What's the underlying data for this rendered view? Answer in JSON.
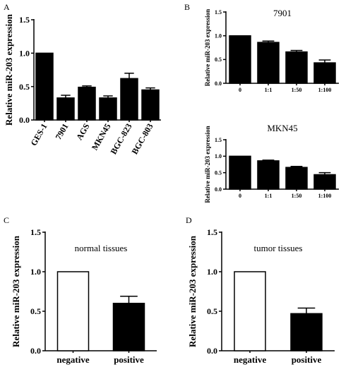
{
  "chart_data": [
    {
      "panel": "A",
      "type": "bar",
      "title": "",
      "xlabel": "",
      "ylabel": "Relative miR-203 expression",
      "categories": [
        "GES-1",
        "7901",
        "AGS",
        "MKN45",
        "BGC-823",
        "BGC-803"
      ],
      "values": [
        1.0,
        0.33,
        0.49,
        0.33,
        0.62,
        0.45
      ],
      "errors": [
        0,
        0.04,
        0.02,
        0.03,
        0.08,
        0.03
      ],
      "fills": [
        "#000000",
        "#000000",
        "#000000",
        "#000000",
        "#000000",
        "#000000"
      ],
      "ylim": [
        0,
        1.5
      ],
      "yticks": [
        "0.0",
        "0.5",
        "1.0",
        "1.5"
      ]
    },
    {
      "panel": "B",
      "type": "bar",
      "title": "7901",
      "xlabel": "",
      "ylabel": "Relative miR-203 expression",
      "categories": [
        "0",
        "1:1",
        "1:50",
        "1:100"
      ],
      "values": [
        1.0,
        0.86,
        0.66,
        0.43
      ],
      "errors": [
        0,
        0.03,
        0.03,
        0.06
      ],
      "fills": [
        "#000000",
        "#000000",
        "#000000",
        "#000000"
      ],
      "ylim": [
        0,
        1.5
      ],
      "yticks": [
        "0.0",
        "0.5",
        "1.0",
        "1.5"
      ]
    },
    {
      "panel": "",
      "type": "bar",
      "title": "MKN45",
      "xlabel": "",
      "ylabel": "Relative miR-203 expression",
      "categories": [
        "0",
        "1:1",
        "1:50",
        "1:100"
      ],
      "values": [
        1.0,
        0.86,
        0.66,
        0.44
      ],
      "errors": [
        0,
        0.02,
        0.03,
        0.06
      ],
      "fills": [
        "#000000",
        "#000000",
        "#000000",
        "#000000"
      ],
      "ylim": [
        0,
        1.5
      ],
      "yticks": [
        "0.0",
        "0.5",
        "1.0",
        "1.5"
      ]
    },
    {
      "panel": "C",
      "type": "bar",
      "title": "normal tissues",
      "xlabel": "",
      "ylabel": "Relative miR-203 expression",
      "categories": [
        "negative",
        "positive"
      ],
      "values": [
        1.0,
        0.6
      ],
      "errors": [
        0,
        0.09
      ],
      "fills": [
        "#ffffff",
        "#000000"
      ],
      "ylim": [
        0,
        1.5
      ],
      "yticks": [
        "0.0",
        "0.5",
        "1.0",
        "1.5"
      ]
    },
    {
      "panel": "D",
      "type": "bar",
      "title": "tumor tissues",
      "xlabel": "",
      "ylabel": "Relative miR-203 expression",
      "categories": [
        "negative",
        "positive"
      ],
      "values": [
        1.0,
        0.47
      ],
      "errors": [
        0,
        0.07
      ],
      "fills": [
        "#ffffff",
        "#000000"
      ],
      "ylim": [
        0,
        1.5
      ],
      "yticks": [
        "0.0",
        "0.5",
        "1.0",
        "1.5"
      ]
    }
  ]
}
